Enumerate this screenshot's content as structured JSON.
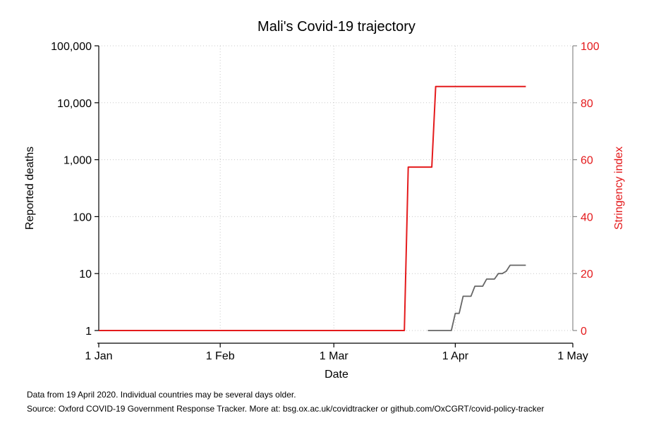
{
  "chart_data": {
    "type": "line",
    "title": "Mali's Covid-19 trajectory",
    "xlabel": "Date",
    "ylabel_left": "Reported deaths",
    "ylabel_right": "Stringency index",
    "x_ticks": [
      "1 Jan",
      "1 Feb",
      "1 Mar",
      "1 Apr",
      "1 May"
    ],
    "x_range": [
      "2020-01-01",
      "2020-05-01"
    ],
    "y_left_scale": "log",
    "y_left_ticks": [
      1,
      10,
      100,
      1000,
      10000,
      100000
    ],
    "y_left_tick_labels": [
      "1",
      "10",
      "100",
      "1,000",
      "10,000",
      "100,000"
    ],
    "y_left_range": [
      1,
      100000
    ],
    "y_right_ticks": [
      0,
      20,
      40,
      60,
      80,
      100
    ],
    "y_right_tick_labels": [
      "0",
      "20",
      "40",
      "60",
      "80",
      "100"
    ],
    "y_right_range": [
      0,
      100
    ],
    "grid": true,
    "series": [
      {
        "axis": "right",
        "color": "#e41a1c",
        "points": [
          [
            "2020-01-01",
            0
          ],
          [
            "2020-03-19",
            0
          ],
          [
            "2020-03-20",
            57.4
          ],
          [
            "2020-03-26",
            57.4
          ],
          [
            "2020-03-27",
            85.7
          ],
          [
            "2020-04-19",
            85.7
          ]
        ]
      },
      {
        "axis": "left",
        "color": "#666666",
        "points": [
          [
            "2020-03-25",
            1
          ],
          [
            "2020-03-31",
            1
          ],
          [
            "2020-04-01",
            2
          ],
          [
            "2020-04-02",
            2
          ],
          [
            "2020-04-03",
            4
          ],
          [
            "2020-04-05",
            4
          ],
          [
            "2020-04-06",
            6
          ],
          [
            "2020-04-08",
            6
          ],
          [
            "2020-04-09",
            8
          ],
          [
            "2020-04-11",
            8
          ],
          [
            "2020-04-12",
            10
          ],
          [
            "2020-04-13",
            10
          ],
          [
            "2020-04-14",
            11
          ],
          [
            "2020-04-15",
            14
          ],
          [
            "2020-04-19",
            14
          ]
        ]
      }
    ]
  },
  "notes": {
    "line1": "Data from 19 April 2020. Individual countries may be several days older.",
    "line2": "Source: Oxford COVID-19 Government Response Tracker. More at: bsg.ox.ac.uk/covidtracker or github.com/OxCGRT/covid-policy-tracker"
  }
}
